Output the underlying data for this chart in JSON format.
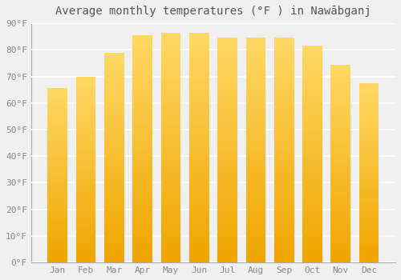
{
  "months": [
    "Jan",
    "Feb",
    "Mar",
    "Apr",
    "May",
    "Jun",
    "Jul",
    "Aug",
    "Sep",
    "Oct",
    "Nov",
    "Dec"
  ],
  "values": [
    65.5,
    70.0,
    79.0,
    85.5,
    86.5,
    86.5,
    84.5,
    84.5,
    84.5,
    81.5,
    74.5,
    67.5
  ],
  "bar_color_bottom": "#F0A500",
  "bar_color_top": "#FFD966",
  "title": "Average monthly temperatures (°F ) in Nawābganj",
  "ylim": [
    0,
    90
  ],
  "yticks": [
    0,
    10,
    20,
    30,
    40,
    50,
    60,
    70,
    80,
    90
  ],
  "ytick_labels": [
    "0°F",
    "10°F",
    "20°F",
    "30°F",
    "40°F",
    "50°F",
    "60°F",
    "70°F",
    "80°F",
    "90°F"
  ],
  "background_color": "#f0f0f0",
  "grid_color": "#ffffff",
  "title_fontsize": 10,
  "tick_fontsize": 8,
  "bar_edge_color": "none",
  "bar_width": 0.7,
  "gradient_steps": 100
}
